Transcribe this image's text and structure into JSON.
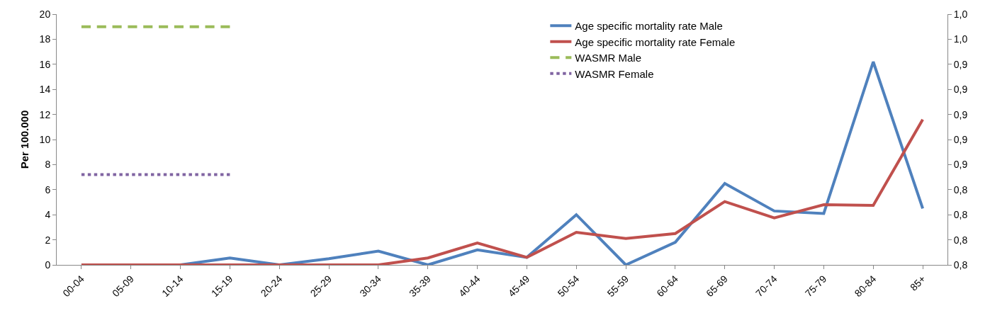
{
  "chart_data": {
    "type": "line",
    "ylabel": "Per 100.000",
    "categories": [
      "00-04",
      "05-09",
      "10-14",
      "15-19",
      "20-24",
      "25-29",
      "30-34",
      "35-39",
      "40-44",
      "45-49",
      "50-54",
      "55-59",
      "60-64",
      "65-69",
      "70-74",
      "75-79",
      "80-84",
      "85+"
    ],
    "series": [
      {
        "name": "Age specific mortality rate Male",
        "color": "#4f81bd",
        "values": [
          0,
          0,
          0,
          0.55,
          0,
          0.5,
          1.1,
          0,
          1.2,
          0.6,
          4.0,
          0,
          1.8,
          6.5,
          4.3,
          4.1,
          16.2,
          4.5
        ]
      },
      {
        "name": "Age specific mortality rate Female",
        "color": "#c0504d",
        "values": [
          0,
          0,
          0,
          0,
          0,
          0,
          0,
          0.55,
          1.75,
          0.6,
          2.6,
          2.1,
          2.5,
          5.05,
          3.75,
          4.8,
          4.75,
          11.6
        ]
      },
      {
        "name": "WASMR Male",
        "color": "#9bbb59",
        "line_style": "dashed",
        "values": [
          19.0,
          19.0,
          19.0,
          19.0,
          null,
          null,
          null,
          null,
          null,
          null,
          null,
          null,
          null,
          null,
          null,
          null,
          null,
          null
        ]
      },
      {
        "name": "WASMR Female",
        "color": "#8064a2",
        "line_style": "dotted",
        "values": [
          7.2,
          7.2,
          7.2,
          7.2,
          null,
          null,
          null,
          null,
          null,
          null,
          null,
          null,
          null,
          null,
          null,
          null,
          null,
          null
        ]
      }
    ],
    "ylim": [
      0,
      20
    ],
    "yticks": [
      0,
      2,
      4,
      6,
      8,
      10,
      12,
      14,
      16,
      18,
      20
    ],
    "y2lim": [
      0.78,
      0.98
    ],
    "y2ticks": [
      {
        "value": 0.78,
        "label": "0,8"
      },
      {
        "value": 0.8,
        "label": "0,8"
      },
      {
        "value": 0.82,
        "label": "0,8"
      },
      {
        "value": 0.84,
        "label": "0,8"
      },
      {
        "value": 0.86,
        "label": "0,9"
      },
      {
        "value": 0.88,
        "label": "0,9"
      },
      {
        "value": 0.9,
        "label": "0,9"
      },
      {
        "value": 0.92,
        "label": "0,9"
      },
      {
        "value": 0.94,
        "label": "0,9"
      },
      {
        "value": 0.96,
        "label": "1,0"
      },
      {
        "value": 0.98,
        "label": "1,0"
      }
    ],
    "legend": "top",
    "grid": false,
    "marker": "none",
    "line_style": "solid"
  }
}
